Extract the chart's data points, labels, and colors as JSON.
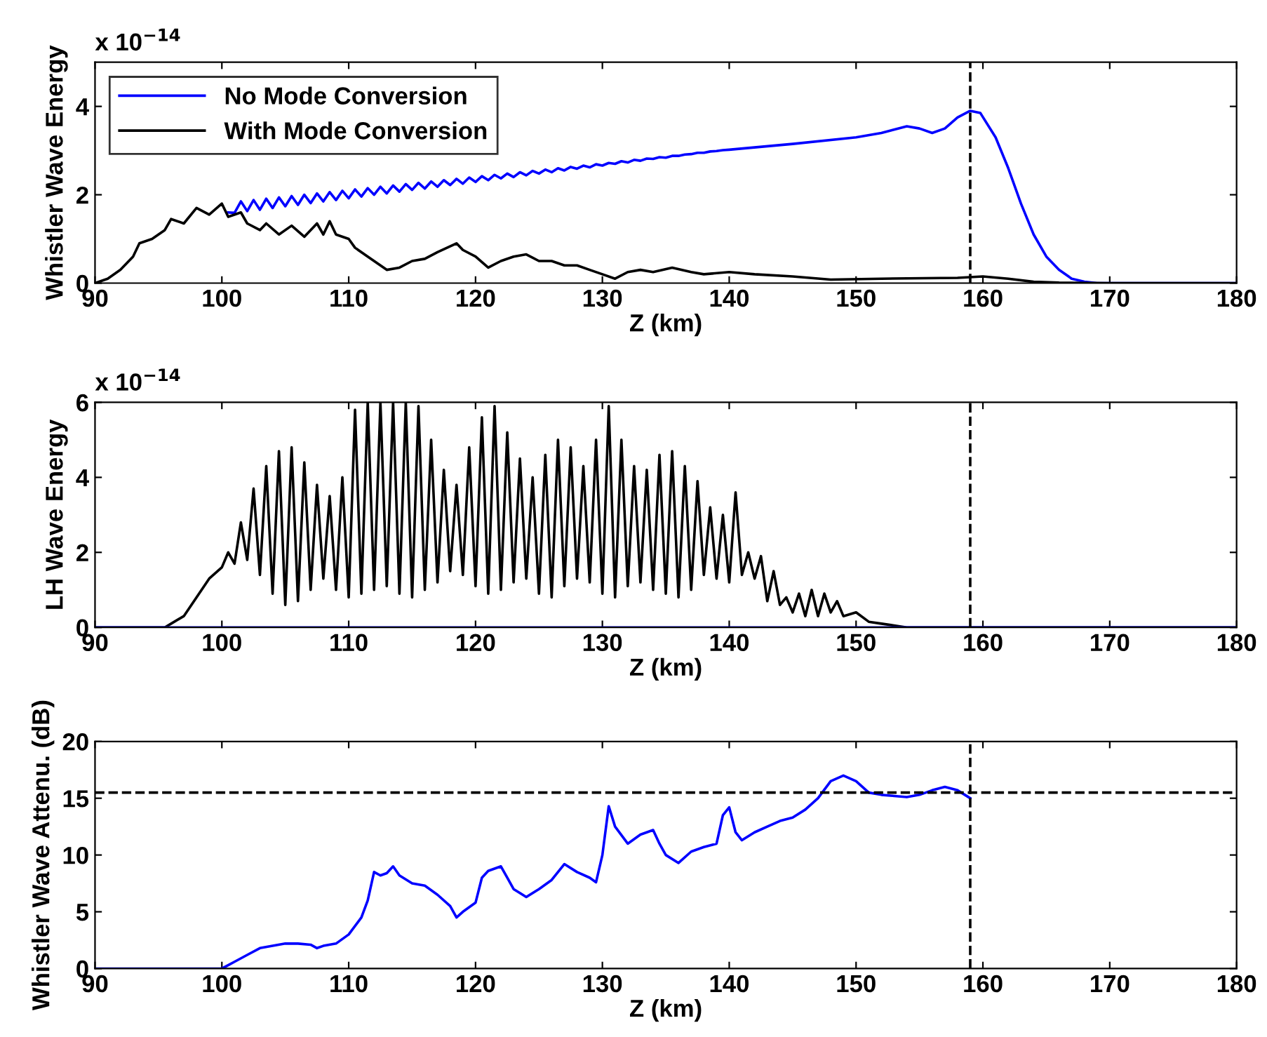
{
  "chart_data": [
    {
      "type": "line",
      "ylabel": "Whistler Wave Energy",
      "xlabel": "Z (km)",
      "annotations": [
        "x 10$^{−14}$"
      ],
      "xlim": [
        90,
        180
      ],
      "xticks": [
        90,
        100,
        110,
        120,
        130,
        140,
        150,
        160,
        170,
        180
      ],
      "ylim": [
        0,
        5
      ],
      "yticks": [
        0,
        2,
        4
      ],
      "grid": false,
      "legend": "top left",
      "series": [
        {
          "name": "No Mode Conversion",
          "color": "#0000ff",
          "x": [
            100.5,
            101,
            101.5,
            102,
            102.5,
            103,
            103.5,
            104,
            104.5,
            105,
            105.5,
            106,
            106.5,
            107,
            107.5,
            108,
            108.5,
            109,
            109.5,
            110,
            110.5,
            111,
            111.5,
            112,
            112.5,
            113,
            113.5,
            114,
            114.5,
            115,
            115.5,
            116,
            116.5,
            117,
            117.5,
            118,
            118.5,
            119,
            119.5,
            120,
            120.5,
            121,
            121.5,
            122,
            122.5,
            123,
            123.5,
            124,
            124.5,
            125,
            125.5,
            126,
            126.5,
            127,
            127.5,
            128,
            128.5,
            129,
            129.5,
            130,
            130.5,
            131,
            131.5,
            132,
            132.5,
            133,
            133.5,
            134,
            134.5,
            135,
            135.5,
            136,
            136.5,
            137,
            137.5,
            138,
            138.5,
            139,
            139.5,
            140,
            145,
            150,
            152,
            154,
            155,
            156,
            157,
            158,
            159,
            159.8,
            161,
            162,
            163,
            164,
            165,
            166,
            167,
            168,
            169,
            180
          ],
          "values": [
            1.6,
            1.59,
            1.85,
            1.63,
            1.88,
            1.66,
            1.91,
            1.7,
            1.94,
            1.74,
            1.97,
            1.77,
            2.0,
            1.81,
            2.03,
            1.85,
            2.06,
            1.88,
            2.09,
            1.92,
            2.12,
            1.96,
            2.15,
            2.0,
            2.18,
            2.03,
            2.21,
            2.07,
            2.24,
            2.11,
            2.27,
            2.14,
            2.3,
            2.18,
            2.33,
            2.22,
            2.36,
            2.25,
            2.39,
            2.29,
            2.42,
            2.33,
            2.45,
            2.37,
            2.48,
            2.4,
            2.51,
            2.44,
            2.54,
            2.48,
            2.57,
            2.51,
            2.6,
            2.55,
            2.63,
            2.59,
            2.66,
            2.62,
            2.69,
            2.66,
            2.72,
            2.7,
            2.76,
            2.73,
            2.79,
            2.77,
            2.82,
            2.81,
            2.85,
            2.84,
            2.88,
            2.88,
            2.91,
            2.92,
            2.95,
            2.95,
            2.98,
            2.99,
            3.01,
            3.02,
            3.15,
            3.3,
            3.4,
            3.55,
            3.5,
            3.4,
            3.5,
            3.75,
            3.9,
            3.85,
            3.3,
            2.6,
            1.8,
            1.1,
            0.6,
            0.3,
            0.1,
            0.03,
            0,
            0
          ]
        },
        {
          "name": "With Mode Conversion",
          "color": "#000000",
          "x": [
            90,
            91,
            92,
            93,
            93.5,
            94.5,
            95.5,
            96,
            97,
            98,
            99,
            100,
            100.5,
            101.5,
            102,
            103,
            103.5,
            104.5,
            105.5,
            106.5,
            107.5,
            108,
            108.5,
            109,
            110,
            110.5,
            111.5,
            112,
            113,
            114,
            115,
            116,
            117,
            118.5,
            119,
            120,
            121,
            122,
            123,
            124,
            125,
            126,
            127,
            128,
            129,
            130,
            131,
            132,
            133,
            134,
            135.5,
            137,
            138,
            140,
            142,
            145,
            148,
            152,
            158,
            160,
            162,
            164,
            166,
            170,
            180
          ],
          "values": [
            0,
            0.1,
            0.3,
            0.6,
            0.9,
            1.0,
            1.2,
            1.45,
            1.35,
            1.7,
            1.55,
            1.8,
            1.5,
            1.6,
            1.35,
            1.2,
            1.35,
            1.1,
            1.3,
            1.05,
            1.35,
            1.1,
            1.4,
            1.1,
            1.0,
            0.8,
            0.6,
            0.5,
            0.3,
            0.35,
            0.5,
            0.55,
            0.7,
            0.9,
            0.75,
            0.6,
            0.35,
            0.5,
            0.6,
            0.65,
            0.5,
            0.5,
            0.4,
            0.4,
            0.3,
            0.2,
            0.1,
            0.25,
            0.3,
            0.25,
            0.35,
            0.25,
            0.2,
            0.25,
            0.2,
            0.15,
            0.08,
            0.1,
            0.12,
            0.15,
            0.1,
            0.03,
            0.01,
            0,
            0
          ]
        }
      ],
      "ref_lines": [
        {
          "axis": "x",
          "value": 159,
          "color": "#000000",
          "line_style": "dashed"
        }
      ]
    },
    {
      "type": "line",
      "ylabel": "LH Wave Energy",
      "xlabel": "Z (km)",
      "annotations": [
        "x 10$^{−14}$"
      ],
      "xlim": [
        90,
        180
      ],
      "xticks": [
        90,
        100,
        110,
        120,
        130,
        140,
        150,
        160,
        170,
        180
      ],
      "ylim": [
        0,
        6
      ],
      "yticks": [
        0,
        2,
        4,
        6
      ],
      "grid": false,
      "series": [
        {
          "color": "#000000",
          "x": [
            90,
            95.5,
            96,
            97,
            98,
            99,
            100,
            100.5,
            101,
            101.5,
            102,
            102.5,
            103,
            103.5,
            104,
            104.5,
            105,
            105.5,
            106,
            106.5,
            107,
            107.5,
            108,
            108.5,
            109,
            109.5,
            110,
            110.5,
            111,
            111.5,
            112,
            112.5,
            113,
            113.5,
            114,
            114.5,
            115,
            115.5,
            116,
            116.5,
            117,
            117.5,
            118,
            118.5,
            119,
            119.5,
            120,
            120.5,
            121,
            121.5,
            122,
            122.5,
            123,
            123.5,
            124,
            124.5,
            125,
            125.5,
            126,
            126.5,
            127,
            127.5,
            128,
            128.5,
            129,
            129.5,
            130,
            130.5,
            131,
            131.5,
            132,
            132.5,
            133,
            133.5,
            134,
            134.5,
            135,
            135.5,
            136,
            136.5,
            137,
            137.5,
            138,
            138.5,
            139,
            139.5,
            140,
            140.5,
            141,
            141.5,
            142,
            142.5,
            143,
            143.5,
            144,
            144.5,
            145,
            145.5,
            146,
            146.5,
            147,
            147.5,
            148,
            148.5,
            149,
            150,
            151,
            152,
            153,
            154,
            180
          ],
          "values": [
            0,
            0,
            0.1,
            0.3,
            0.8,
            1.3,
            1.6,
            2.0,
            1.7,
            2.8,
            1.8,
            3.7,
            1.4,
            4.3,
            0.9,
            4.7,
            0.6,
            4.8,
            0.7,
            4.4,
            1.0,
            3.8,
            1.3,
            3.5,
            1.0,
            4.0,
            0.8,
            5.8,
            0.9,
            6.0,
            1.0,
            6.0,
            1.1,
            6.0,
            0.9,
            6.0,
            0.8,
            5.9,
            1.0,
            5.0,
            1.2,
            4.2,
            1.5,
            3.8,
            1.4,
            4.8,
            1.1,
            5.6,
            0.9,
            5.9,
            1.0,
            5.2,
            1.2,
            4.5,
            1.3,
            4.0,
            0.9,
            4.6,
            0.8,
            5.0,
            1.1,
            4.8,
            1.3,
            4.3,
            1.2,
            5.0,
            0.9,
            5.9,
            0.8,
            5.0,
            1.1,
            4.3,
            1.2,
            4.2,
            1.0,
            4.6,
            0.9,
            4.7,
            0.8,
            4.3,
            1.0,
            3.9,
            1.4,
            3.2,
            1.3,
            3.0,
            1.2,
            3.6,
            1.4,
            2.0,
            1.3,
            1.9,
            0.7,
            1.5,
            0.6,
            0.8,
            0.4,
            0.9,
            0.3,
            1.0,
            0.3,
            0.9,
            0.4,
            0.7,
            0.3,
            0.4,
            0.15,
            0.1,
            0.05,
            0,
            0
          ]
        },
        {
          "color": "#0000ff",
          "x": [
            90,
            180
          ],
          "values": [
            0,
            0
          ]
        }
      ],
      "ref_lines": [
        {
          "axis": "x",
          "value": 159,
          "color": "#000000",
          "line_style": "dashed"
        }
      ]
    },
    {
      "type": "line",
      "ylabel": "Whistler Wave Attenu. (dB)",
      "xlabel": "Z (km)",
      "xlim": [
        90,
        180
      ],
      "xticks": [
        90,
        100,
        110,
        120,
        130,
        140,
        150,
        160,
        170,
        180
      ],
      "ylim": [
        0,
        20
      ],
      "yticks": [
        0,
        5,
        10,
        15,
        20
      ],
      "grid": false,
      "series": [
        {
          "color": "#0000ff",
          "x": [
            90,
            100,
            100.5,
            101,
            102,
            103,
            104,
            105,
            106,
            107,
            107.5,
            108,
            109,
            110,
            111,
            111.5,
            112,
            112.5,
            113,
            113.5,
            114,
            115,
            116,
            117,
            118,
            118.5,
            119,
            120,
            120.5,
            121,
            122,
            122.5,
            123,
            124,
            125,
            126,
            127,
            128,
            129,
            129.5,
            130,
            130.5,
            131,
            132,
            133,
            134,
            134.5,
            135,
            136,
            137,
            138,
            139,
            139.5,
            140,
            140.5,
            141,
            142,
            143,
            144,
            145,
            146,
            147,
            148,
            149,
            150,
            151,
            152,
            153,
            154,
            155,
            156,
            157,
            158,
            159
          ],
          "values": [
            0,
            0,
            0.3,
            0.6,
            1.2,
            1.8,
            2.0,
            2.2,
            2.2,
            2.1,
            1.8,
            2.0,
            2.2,
            3.0,
            4.5,
            6.0,
            8.5,
            8.2,
            8.4,
            9.0,
            8.2,
            7.5,
            7.3,
            6.5,
            5.5,
            4.5,
            5.0,
            5.8,
            8.0,
            8.6,
            9.0,
            8.0,
            7.0,
            6.3,
            7.0,
            7.8,
            9.2,
            8.5,
            8.0,
            7.6,
            10.0,
            14.3,
            12.5,
            11.0,
            11.8,
            12.2,
            11.0,
            10.0,
            9.3,
            10.3,
            10.7,
            11.0,
            13.5,
            14.2,
            12.0,
            11.3,
            12.0,
            12.5,
            13.0,
            13.3,
            14.0,
            15.0,
            16.5,
            17.0,
            16.5,
            15.5,
            15.3,
            15.2,
            15.1,
            15.3,
            15.7,
            16.0,
            15.7,
            15.0
          ]
        }
      ],
      "ref_lines": [
        {
          "axis": "x",
          "value": 159,
          "color": "#000000",
          "line_style": "dashed"
        },
        {
          "axis": "y",
          "value": 15.5,
          "color": "#000000",
          "line_style": "dashed"
        }
      ]
    }
  ]
}
